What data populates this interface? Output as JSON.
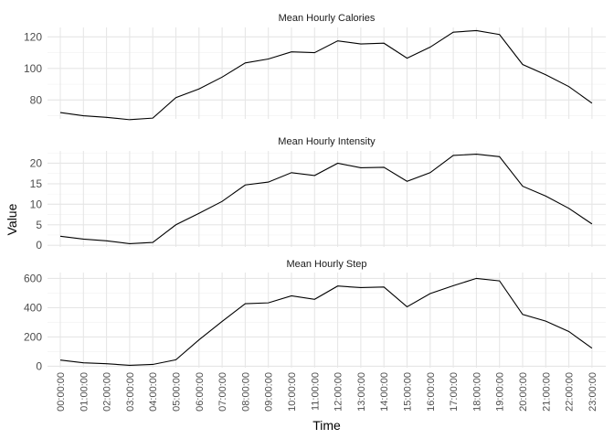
{
  "chart_data": {
    "type": "line",
    "xlabel": "Time",
    "ylabel": "Value",
    "x": [
      "00:00:00",
      "01:00:00",
      "02:00:00",
      "03:00:00",
      "04:00:00",
      "05:00:00",
      "06:00:00",
      "07:00:00",
      "08:00:00",
      "09:00:00",
      "10:00:00",
      "11:00:00",
      "12:00:00",
      "13:00:00",
      "14:00:00",
      "15:00:00",
      "16:00:00",
      "17:00:00",
      "18:00:00",
      "19:00:00",
      "20:00:00",
      "21:00:00",
      "22:00:00",
      "23:00:00"
    ],
    "grid": true,
    "legend": "none",
    "facets": [
      {
        "title": "Mean Hourly Calories",
        "ylim": [
          68,
          126
        ],
        "yticks": [
          80,
          100,
          120
        ],
        "values": [
          72,
          70,
          69,
          67.5,
          68.5,
          81.5,
          87,
          94.5,
          103.5,
          106,
          110.5,
          110,
          117.5,
          115.5,
          116,
          106.5,
          113.5,
          123,
          124,
          121.5,
          102.5,
          96,
          88.5,
          78
        ]
      },
      {
        "title": "Mean Hourly Intensity",
        "ylim": [
          -0.4,
          23
        ],
        "yticks": [
          0,
          5,
          10,
          15,
          20
        ],
        "values": [
          2.2,
          1.5,
          1.1,
          0.4,
          0.7,
          5.0,
          7.8,
          10.7,
          14.7,
          15.4,
          17.7,
          17.0,
          20.0,
          18.9,
          19.0,
          15.6,
          17.7,
          21.9,
          22.2,
          21.6,
          14.4,
          12.0,
          9.0,
          5.2
        ]
      },
      {
        "title": "Mean Hourly Step",
        "ylim": [
          -10,
          640
        ],
        "yticks": [
          0,
          200,
          400,
          600
        ],
        "values": [
          42,
          23,
          17,
          6,
          12,
          44,
          180,
          306,
          427,
          433,
          481,
          457,
          548,
          537,
          541,
          406,
          496,
          550,
          600,
          583,
          354,
          308,
          237,
          123
        ]
      }
    ]
  }
}
